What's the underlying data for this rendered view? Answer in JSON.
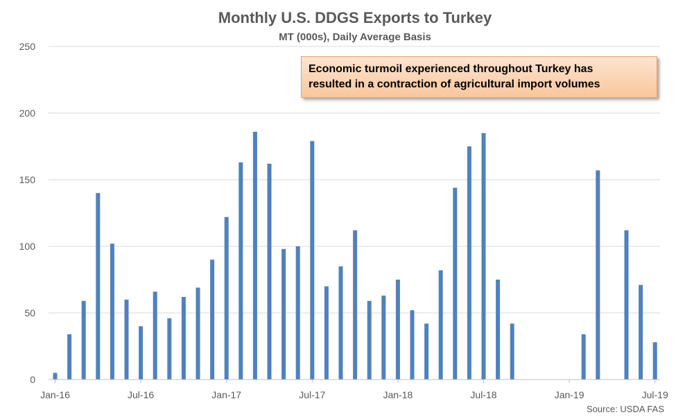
{
  "chart_data": {
    "type": "bar",
    "title": "Monthly U.S. DDGS Exports to Turkey",
    "subtitle": "MT (000s), Daily Average Basis",
    "source": "Source: USDA FAS",
    "annotation": {
      "line1": "Economic turmoil experienced throughout Turkey has",
      "line2": "resulted in a contraction of agricultural import volumes"
    },
    "ylim": [
      0,
      250
    ],
    "yticks": [
      0,
      50,
      100,
      150,
      200,
      250
    ],
    "grid": true,
    "bar_color": "#4f81bd",
    "x_tick_labels": [
      {
        "index": 0,
        "label": "Jan-16"
      },
      {
        "index": 6,
        "label": "Jul-16"
      },
      {
        "index": 12,
        "label": "Jan-17"
      },
      {
        "index": 18,
        "label": "Jul-17"
      },
      {
        "index": 24,
        "label": "Jan-18"
      },
      {
        "index": 30,
        "label": "Jul-18"
      },
      {
        "index": 36,
        "label": "Jan-19"
      },
      {
        "index": 42,
        "label": "Jul-19"
      }
    ],
    "categories": [
      "Jan-16",
      "Feb-16",
      "Mar-16",
      "Apr-16",
      "May-16",
      "Jun-16",
      "Jul-16",
      "Aug-16",
      "Sep-16",
      "Oct-16",
      "Nov-16",
      "Dec-16",
      "Jan-17",
      "Feb-17",
      "Mar-17",
      "Apr-17",
      "May-17",
      "Jun-17",
      "Jul-17",
      "Aug-17",
      "Sep-17",
      "Oct-17",
      "Nov-17",
      "Dec-17",
      "Jan-18",
      "Feb-18",
      "Mar-18",
      "Apr-18",
      "May-18",
      "Jun-18",
      "Jul-18",
      "Aug-18",
      "Sep-18",
      "Oct-18",
      "Nov-18",
      "Dec-18",
      "Jan-19",
      "Feb-19",
      "Mar-19",
      "Apr-19",
      "May-19",
      "Jun-19",
      "Jul-19"
    ],
    "values": [
      5,
      34,
      59,
      140,
      102,
      60,
      40,
      66,
      46,
      62,
      69,
      90,
      122,
      163,
      186,
      162,
      98,
      100,
      179,
      70,
      85,
      112,
      59,
      63,
      75,
      52,
      42,
      82,
      144,
      175,
      185,
      75,
      42,
      0,
      0,
      0,
      0,
      34,
      157,
      0,
      112,
      71,
      28
    ]
  }
}
